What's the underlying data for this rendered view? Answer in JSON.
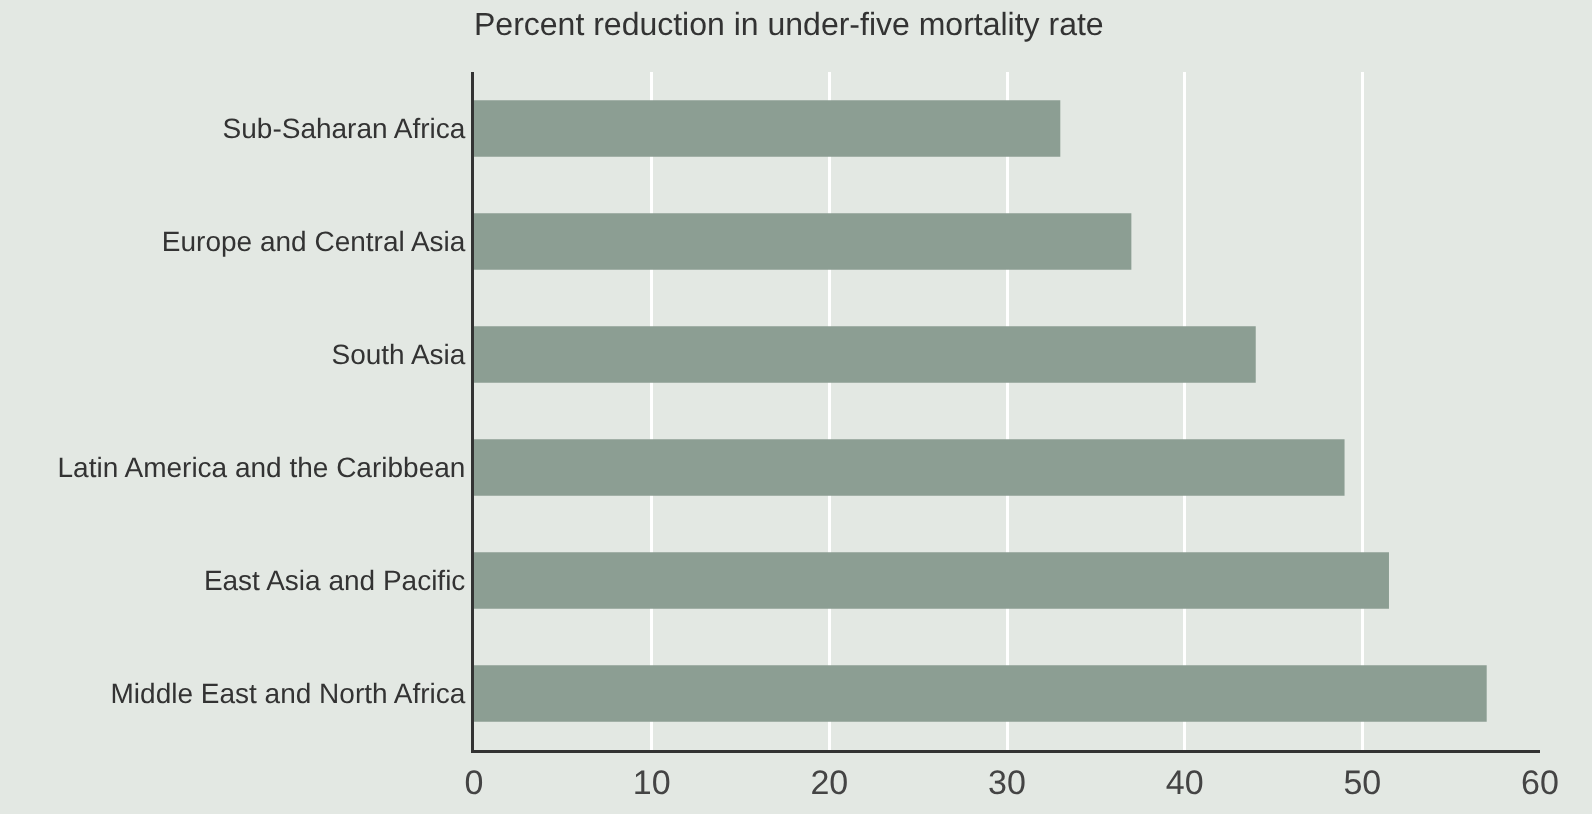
{
  "chart_data": {
    "type": "bar",
    "orientation": "horizontal",
    "title": "Percent reduction in under-five mortality rate",
    "categories": [
      "Sub-Saharan Africa",
      "Europe and Central Asia",
      "South Asia",
      "Latin America and the Caribbean",
      "East Asia and Pacific",
      "Middle East and North Africa"
    ],
    "values": [
      33,
      37,
      44,
      49,
      51.5,
      57
    ],
    "color": "#8c9e93",
    "xlim": [
      0,
      60
    ],
    "xticks": [
      0,
      10,
      20,
      30,
      40,
      50,
      60
    ],
    "grid": "x"
  }
}
